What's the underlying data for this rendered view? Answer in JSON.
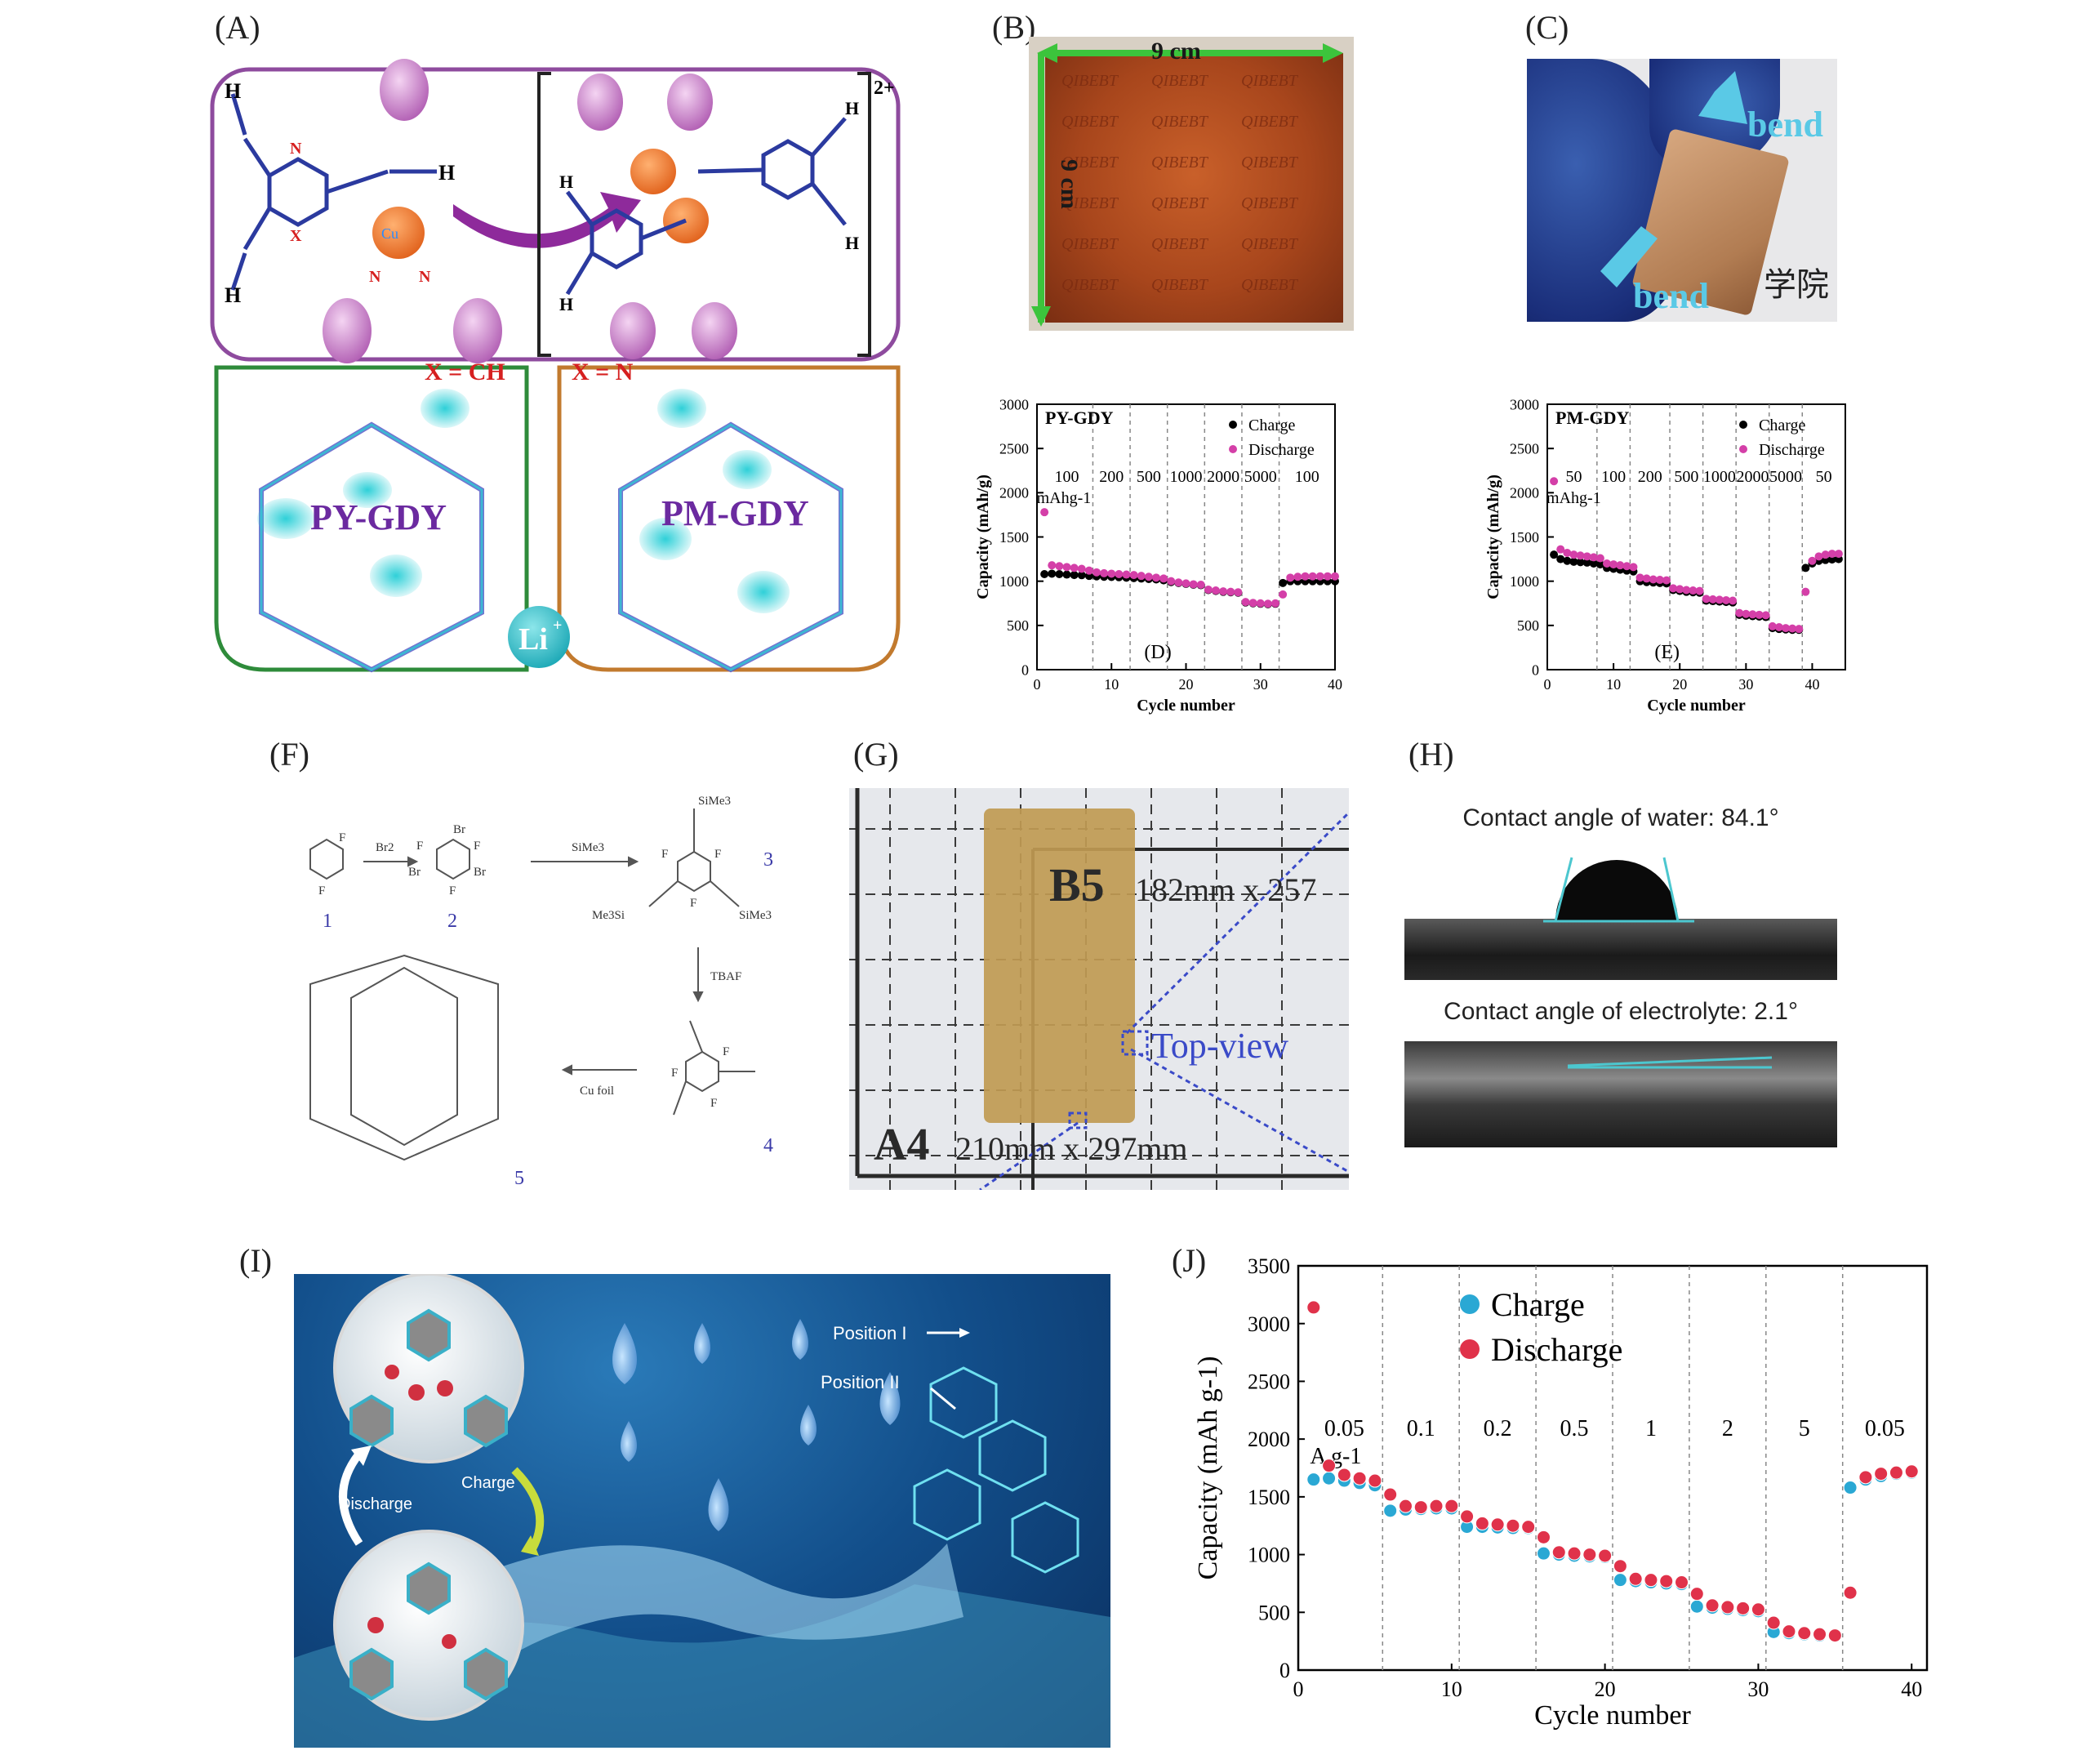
{
  "panel_labels": {
    "A": "(A)",
    "B": "(B)",
    "C": "(C)",
    "D": "(D)",
    "E": "(E)",
    "F": "(F)",
    "G": "(G)",
    "H": "(H)",
    "I": "(I)",
    "J": "(J)"
  },
  "panel_a": {
    "charge": "2+",
    "x_ch": "X = CH",
    "x_n": "X = N",
    "py_gdy": "PY-GDY",
    "pm_gdy": "PM-GDY",
    "li": "Li",
    "li_sup": "+",
    "cu": "Cu",
    "cu_sup": "2+",
    "n": "N",
    "x": "X",
    "h": "H",
    "colors": {
      "purple_frame": "#8e4b9e",
      "green_frame": "#2e8b3a",
      "orange_frame": "#c27a2e",
      "arrow": "#8e2a9b",
      "lobe": "#c97fc9",
      "cu": "#f07f2c",
      "li": "#4cc7cf"
    }
  },
  "panel_b": {
    "width_label": "9 cm",
    "height_label": "9 cm",
    "watermark": "QIBEBT"
  },
  "panel_c": {
    "bend_top": "bend",
    "bend_bottom": "bend",
    "sign_text": "学院"
  },
  "chart_data": [
    {
      "id": "D",
      "type": "scatter",
      "title": "PY-GDY",
      "xlabel": "Cycle number",
      "ylabel": "Capacity (mAh/g)",
      "xlim": [
        0,
        40
      ],
      "ylim": [
        0,
        3000
      ],
      "xticks": [
        0,
        10,
        20,
        30,
        40
      ],
      "yticks": [
        0,
        500,
        1000,
        1500,
        2000,
        2500,
        3000
      ],
      "legend": "top-right",
      "rate_labels": [
        "100",
        "200",
        "500",
        "1000",
        "2000",
        "5000",
        "100"
      ],
      "rate_unit": "mAhg-1",
      "panel_tag": "(D)",
      "series": [
        {
          "name": "Charge",
          "color": "#000000",
          "x": [
            1,
            2,
            3,
            4,
            5,
            6,
            7,
            8,
            9,
            10,
            11,
            12,
            13,
            14,
            15,
            16,
            17,
            18,
            19,
            20,
            21,
            22,
            23,
            24,
            25,
            26,
            27,
            28,
            29,
            30,
            31,
            32,
            33,
            34,
            35,
            36,
            37,
            38,
            39,
            40
          ],
          "y": [
            1080,
            1085,
            1080,
            1075,
            1070,
            1068,
            1060,
            1055,
            1050,
            1048,
            1045,
            1040,
            1035,
            1030,
            1025,
            1020,
            1010,
            990,
            980,
            970,
            960,
            955,
            900,
            890,
            880,
            875,
            870,
            760,
            750,
            745,
            740,
            745,
            980,
            1000,
            1000,
            1000,
            1000,
            1000,
            1000,
            1000
          ]
        },
        {
          "name": "Discharge",
          "color": "#d43fa8",
          "x": [
            1,
            2,
            3,
            4,
            5,
            6,
            7,
            8,
            9,
            10,
            11,
            12,
            13,
            14,
            15,
            16,
            17,
            18,
            19,
            20,
            21,
            22,
            23,
            24,
            25,
            26,
            27,
            28,
            29,
            30,
            31,
            32,
            33,
            34,
            35,
            36,
            37,
            38,
            39,
            40
          ],
          "y": [
            1780,
            1180,
            1170,
            1160,
            1150,
            1140,
            1120,
            1100,
            1090,
            1085,
            1080,
            1075,
            1070,
            1060,
            1050,
            1040,
            1030,
            1000,
            985,
            975,
            965,
            960,
            905,
            895,
            885,
            880,
            875,
            765,
            755,
            750,
            745,
            750,
            850,
            1040,
            1050,
            1055,
            1055,
            1055,
            1055,
            1055
          ]
        }
      ]
    },
    {
      "id": "E",
      "type": "scatter",
      "title": "PM-GDY",
      "xlabel": "Cycle number",
      "ylabel": "Capacity (mAh/g)",
      "xlim": [
        0,
        45
      ],
      "ylim": [
        0,
        3000
      ],
      "xticks": [
        0,
        10,
        20,
        30,
        40
      ],
      "yticks": [
        0,
        500,
        1000,
        1500,
        2000,
        2500,
        3000
      ],
      "legend": "top-right",
      "rate_labels": [
        "50",
        "100",
        "200",
        "500",
        "1000",
        "2000",
        "5000",
        "50"
      ],
      "rate_unit": "mAhg-1",
      "panel_tag": "(E)",
      "series": [
        {
          "name": "Charge",
          "color": "#000000",
          "x": [
            1,
            2,
            3,
            4,
            5,
            6,
            7,
            8,
            9,
            10,
            11,
            12,
            13,
            14,
            15,
            16,
            17,
            18,
            19,
            20,
            21,
            22,
            23,
            24,
            25,
            26,
            27,
            28,
            29,
            30,
            31,
            32,
            33,
            34,
            35,
            36,
            37,
            38,
            39,
            40,
            41,
            42,
            43,
            44
          ],
          "y": [
            1300,
            1250,
            1230,
            1220,
            1215,
            1210,
            1200,
            1190,
            1150,
            1140,
            1130,
            1120,
            1110,
            1000,
            990,
            985,
            980,
            975,
            900,
            890,
            880,
            875,
            870,
            780,
            775,
            770,
            765,
            760,
            620,
            610,
            605,
            600,
            595,
            470,
            460,
            455,
            450,
            450,
            1150,
            1200,
            1230,
            1240,
            1245,
            1250
          ]
        },
        {
          "name": "Discharge",
          "color": "#d43fa8",
          "x": [
            1,
            2,
            3,
            4,
            5,
            6,
            7,
            8,
            9,
            10,
            11,
            12,
            13,
            14,
            15,
            16,
            17,
            18,
            19,
            20,
            21,
            22,
            23,
            24,
            25,
            26,
            27,
            28,
            29,
            30,
            31,
            32,
            33,
            34,
            35,
            36,
            37,
            38,
            39,
            40,
            41,
            42,
            43,
            44
          ],
          "y": [
            2130,
            1360,
            1320,
            1300,
            1290,
            1280,
            1270,
            1260,
            1200,
            1190,
            1180,
            1170,
            1160,
            1040,
            1030,
            1020,
            1015,
            1010,
            920,
            910,
            900,
            895,
            890,
            800,
            795,
            790,
            785,
            780,
            640,
            630,
            625,
            620,
            615,
            490,
            480,
            470,
            465,
            460,
            880,
            1230,
            1280,
            1300,
            1310,
            1310
          ]
        }
      ]
    },
    {
      "id": "J",
      "type": "scatter",
      "title": "",
      "xlabel": "Cycle number",
      "ylabel": "Capacity (mAh g-1)",
      "xlim": [
        0,
        41
      ],
      "ylim": [
        0,
        3500
      ],
      "xticks": [
        0,
        10,
        20,
        30,
        40
      ],
      "yticks": [
        0,
        500,
        1000,
        1500,
        2000,
        2500,
        3000,
        3500
      ],
      "legend": "top-center",
      "rate_labels": [
        "0.05",
        "0.1",
        "0.2",
        "0.5",
        "1",
        "2",
        "5",
        "0.05"
      ],
      "rate_unit": "A g-1",
      "panel_tag": "",
      "series": [
        {
          "name": "Charge",
          "color": "#2aa8d4",
          "x": [
            1,
            2,
            3,
            4,
            5,
            6,
            7,
            8,
            9,
            10,
            11,
            12,
            13,
            14,
            15,
            16,
            17,
            18,
            19,
            20,
            21,
            22,
            23,
            24,
            25,
            26,
            27,
            28,
            29,
            30,
            31,
            32,
            33,
            34,
            35,
            36,
            37,
            38,
            39,
            40
          ],
          "y": [
            1650,
            1660,
            1640,
            1620,
            1600,
            1380,
            1390,
            1395,
            1400,
            1400,
            1240,
            1240,
            1235,
            1230,
            1230,
            1010,
            1000,
            990,
            985,
            980,
            780,
            770,
            760,
            750,
            745,
            550,
            540,
            530,
            520,
            510,
            330,
            320,
            310,
            300,
            295,
            1580,
            1650,
            1680,
            1700,
            1710
          ]
        },
        {
          "name": "Discharge",
          "color": "#e0324a",
          "x": [
            1,
            2,
            3,
            4,
            5,
            6,
            7,
            8,
            9,
            10,
            11,
            12,
            13,
            14,
            15,
            16,
            17,
            18,
            19,
            20,
            21,
            22,
            23,
            24,
            25,
            26,
            27,
            28,
            29,
            30,
            31,
            32,
            33,
            34,
            35,
            36,
            37,
            38,
            39,
            40
          ],
          "y": [
            3140,
            1770,
            1690,
            1660,
            1640,
            1520,
            1420,
            1410,
            1420,
            1420,
            1330,
            1270,
            1260,
            1250,
            1240,
            1150,
            1020,
            1010,
            1000,
            990,
            900,
            790,
            780,
            770,
            760,
            660,
            560,
            545,
            535,
            525,
            410,
            335,
            320,
            310,
            300,
            670,
            1670,
            1700,
            1710,
            1720
          ]
        }
      ]
    }
  ],
  "panel_f": {
    "br2": "Br2",
    "tms_reagent": "SiMe3",
    "tbaf": "TBAF",
    "cu_foil": "Cu foil",
    "num1": "1",
    "num2": "2",
    "num3": "3",
    "num4": "4",
    "num5": "5",
    "f": "F",
    "br": "Br",
    "sime3": "SiMe3",
    "me3si": "Me3Si"
  },
  "panel_g": {
    "b5_label": "B5",
    "b5_size": "182mm x 257",
    "a4_label": "A4",
    "a4_size": "210mm x 297mm",
    "top_view": "Top-view"
  },
  "panel_h": {
    "water": "Contact angle of water: 84.1°",
    "electrolyte": "Contact angle of electrolyte: 2.1°"
  },
  "panel_i": {
    "discharge": "Discharge",
    "charge": "Charge",
    "position1": "Position I",
    "position2": "Position II"
  }
}
